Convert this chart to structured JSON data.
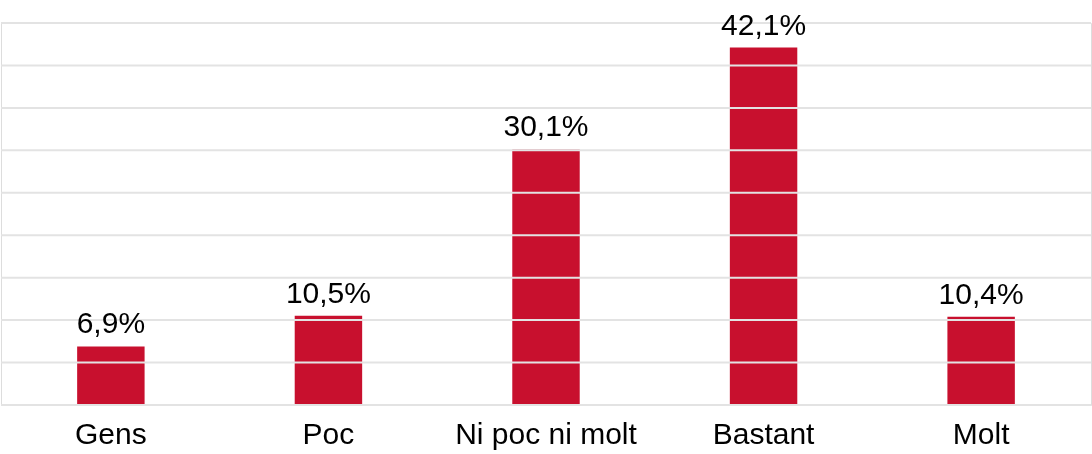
{
  "chart_data": {
    "type": "bar",
    "categories": [
      "Gens",
      "Poc",
      "Ni poc ni molt",
      "Bastant",
      "Molt"
    ],
    "values": [
      6.9,
      10.5,
      30.1,
      42.1,
      10.4
    ],
    "value_labels": [
      "6,9%",
      "10,5%",
      "30,1%",
      "42,1%",
      "10,4%"
    ],
    "color": "#c8102e",
    "ylim": [
      0,
      45
    ],
    "yticks": [
      {
        "value": 0,
        "label": null
      },
      {
        "value": 5,
        "label": null
      },
      {
        "value": 10,
        "label": null
      },
      {
        "value": 15,
        "label": null
      },
      {
        "value": 20,
        "label": null
      },
      {
        "value": 25,
        "label": null
      },
      {
        "value": 30,
        "label": null
      },
      {
        "value": 35,
        "label": null
      },
      {
        "value": 40,
        "label": null
      },
      {
        "value": 45,
        "label": null
      }
    ],
    "grid": "y",
    "tick_labels": "x"
  }
}
